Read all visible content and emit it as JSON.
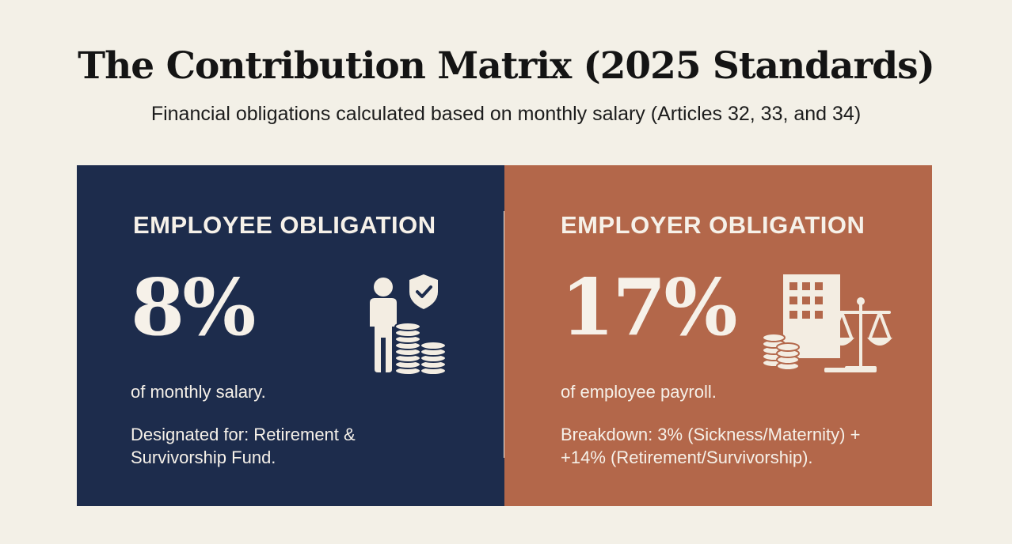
{
  "title": "The Contribution Matrix (2025 Standards)",
  "subtitle": "Financial obligations calculated based on monthly salary (Articles 32, 33, and 34)",
  "colors": {
    "background": "#f3f0e7",
    "employee_panel": "#1d2c4c",
    "employer_panel": "#b3674a",
    "text_light": "#f6f1e9"
  },
  "employee": {
    "heading": "EMPLOYEE OBLIGATION",
    "rate": "8%",
    "basis": "of monthly salary.",
    "description": "Designated for: Retirement & Survivorship Fund.",
    "icon": "person-shield-coins-icon"
  },
  "employer": {
    "heading": "EMPLOYER OBLIGATION",
    "rate": "17%",
    "basis": "of employee payroll.",
    "description_line1": "Breakdown: 3% (Sickness/Maternity) +",
    "description_line2": "+14% (Retirement/Survivorship).",
    "icon": "building-scales-coins-icon"
  }
}
